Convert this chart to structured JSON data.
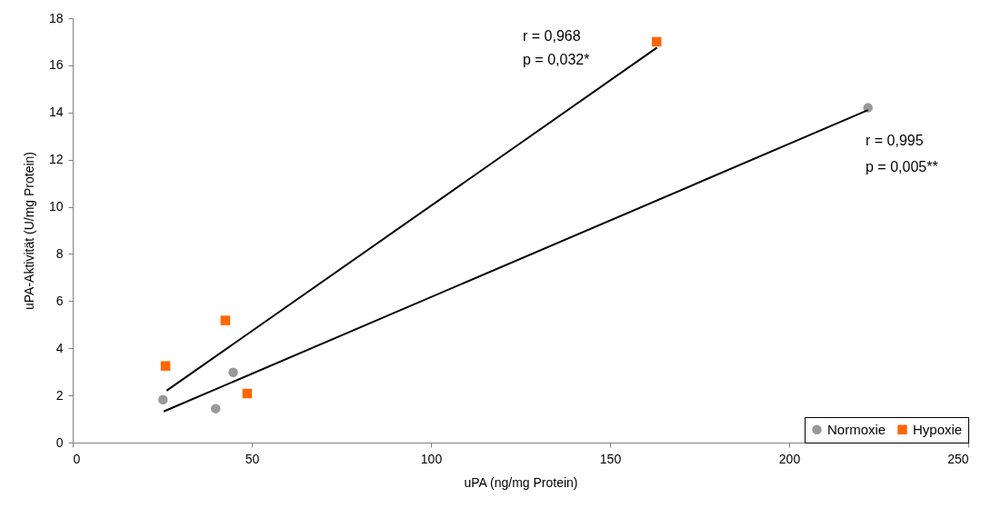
{
  "chart_data": {
    "type": "scatter",
    "xlabel": "uPA (ng/mg Protein)",
    "ylabel": "uPA-Aktivität (U/mg Protein)",
    "xlim": [
      0,
      250
    ],
    "xticks": [
      0,
      50,
      100,
      150,
      200,
      250
    ],
    "ylim": [
      0,
      18
    ],
    "yticks": [
      0,
      2,
      4,
      6,
      8,
      10,
      12,
      14,
      16,
      18
    ],
    "grid": false,
    "legend": "bottom right",
    "series": [
      {
        "name": "Normoxie",
        "marker": "circle",
        "color": "#999999",
        "x": [
          25.2,
          39.9,
          44.8,
          222
        ],
        "values": [
          1.82,
          1.44,
          2.98,
          14.2
        ]
      },
      {
        "name": "Hypoxie",
        "marker": "square",
        "color": "#ff6600",
        "x": [
          25.9,
          42.6,
          48.7,
          163
        ],
        "values": [
          3.25,
          5.18,
          2.08,
          17.0
        ]
      },
      {
        "type": "line",
        "marker": "none",
        "color": "#000000",
        "x": [
          25.4,
          222
        ],
        "values": [
          1.32,
          14.1
        ]
      },
      {
        "type": "line",
        "marker": "none",
        "color": "#000000",
        "x": [
          26.2,
          163.1
        ],
        "values": [
          2.2,
          16.75
        ]
      }
    ],
    "annotations": [
      "r = 0,968",
      "p = 0,032*",
      "r = 0,995",
      "p = 0,005**"
    ]
  }
}
